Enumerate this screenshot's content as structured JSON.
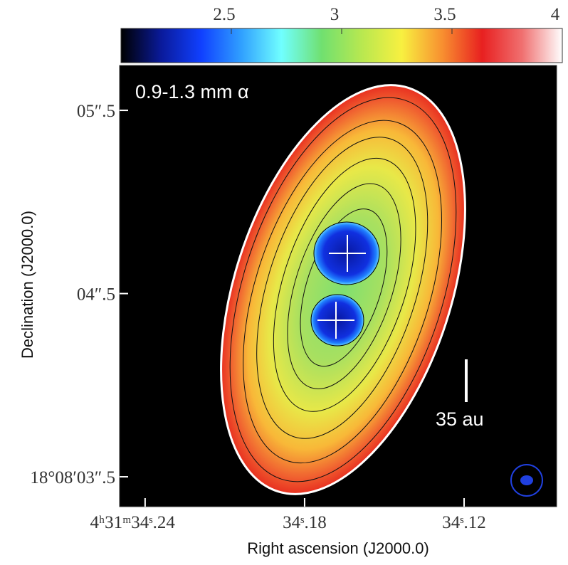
{
  "chart_data": {
    "type": "image",
    "annotation": "0.9-1.3 mm α",
    "scale_label": "35 au",
    "xlabel": "Right ascension (J2000.0)",
    "ylabel": "Declination (J2000.0)",
    "xlim": [
      34.2496,
      34.0852
    ],
    "xticks": [
      {
        "value": 34.24,
        "label": "4ʰ31ᵐ34ˢ.24"
      },
      {
        "value": 34.18,
        "label": "34ˢ.18"
      },
      {
        "value": 34.12,
        "label": "34ˢ.12"
      }
    ],
    "ylim": [
      3.337,
      5.745
    ],
    "yticks": [
      {
        "value": 3.5,
        "label": "18°08′03″.5"
      },
      {
        "value": 4.5,
        "label": "04″.5"
      },
      {
        "value": 5.5,
        "label": "05″.5"
      }
    ],
    "clim": [
      2,
      4
    ],
    "cticks": [
      2.5,
      3,
      3.5,
      4
    ],
    "colormap": [
      "#000000",
      "#0a1a9a",
      "#1040ff",
      "#30a0ff",
      "#70ffff",
      "#70e070",
      "#b8e850",
      "#f8f040",
      "#f89030",
      "#e82020",
      "#f07070",
      "#ffffff"
    ]
  }
}
